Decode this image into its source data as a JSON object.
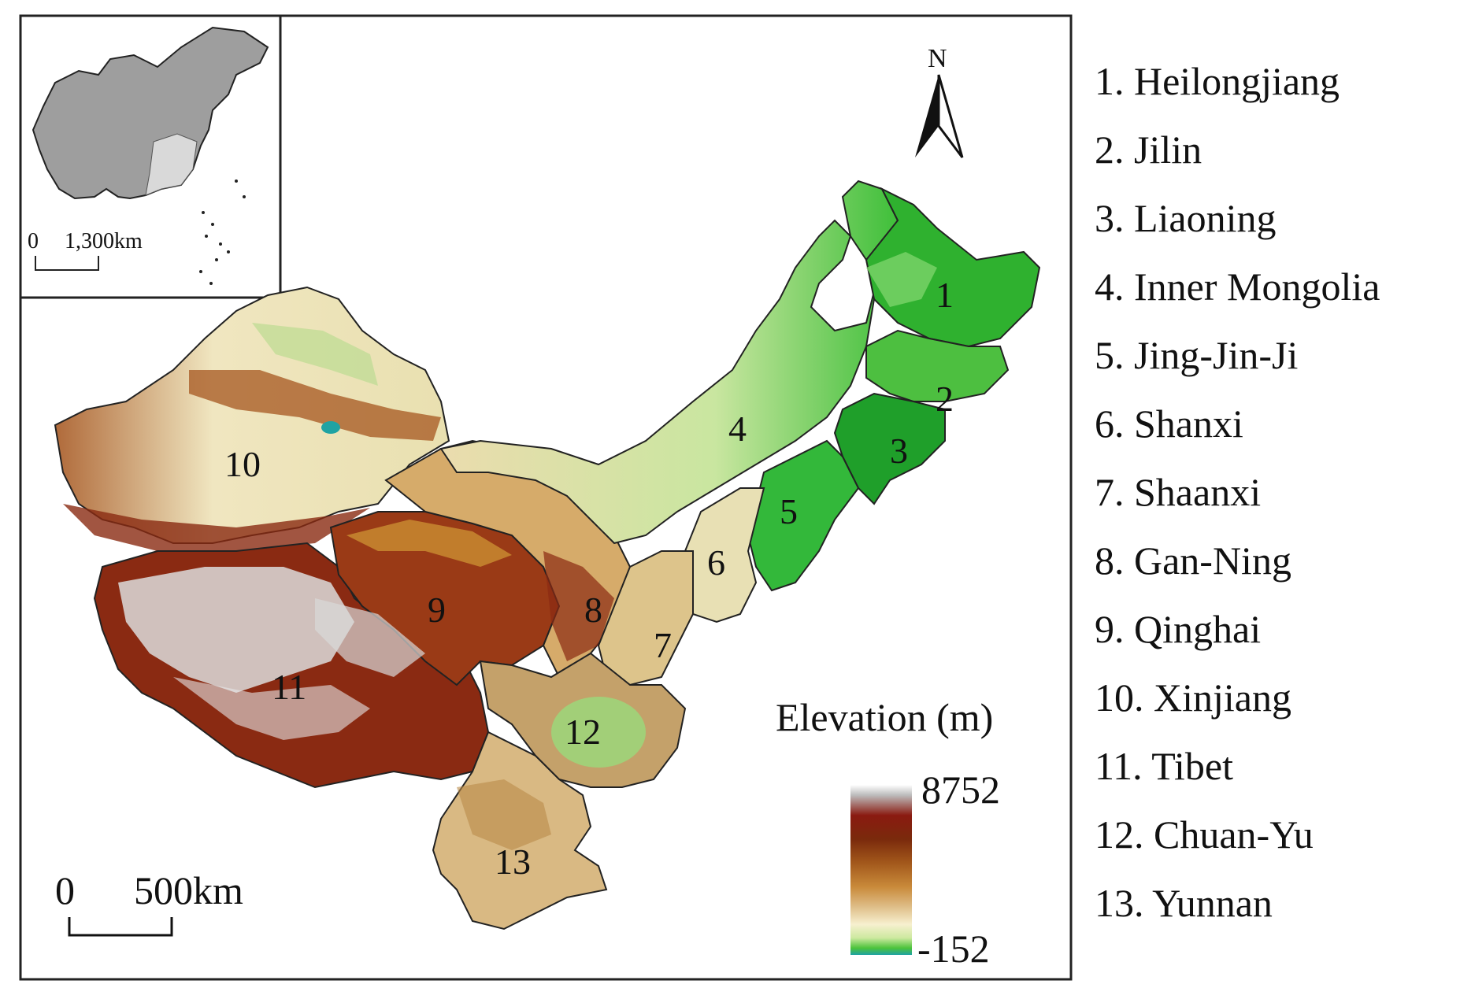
{
  "north_label": "N",
  "inset": {
    "scale_label_left": "0",
    "scale_label_right": "1,300km"
  },
  "main_scale": {
    "label_left": "0",
    "label_right": "500km"
  },
  "elevation_legend": {
    "title": "Elevation (m)",
    "max_label": "8752",
    "min_label": "-152",
    "colors": [
      "#ffffff",
      "#bdbdbd",
      "#8a1a10",
      "#7a2a0c",
      "#a0551a",
      "#c98a3a",
      "#dfbf8a",
      "#f7f0cf",
      "#cde9a0",
      "#4cc23a",
      "#1fa3a3"
    ]
  },
  "regions": [
    {
      "id": "1",
      "name": "Heilongjiang"
    },
    {
      "id": "2",
      "name": "Jilin"
    },
    {
      "id": "3",
      "name": "Liaoning"
    },
    {
      "id": "4",
      "name": "Inner Mongolia"
    },
    {
      "id": "5",
      "name": "Jing-Jin-Ji"
    },
    {
      "id": "6",
      "name": "Shanxi"
    },
    {
      "id": "7",
      "name": "Shaanxi"
    },
    {
      "id": "8",
      "name": "Gan-Ning"
    },
    {
      "id": "9",
      "name": "Qinghai"
    },
    {
      "id": "10",
      "name": "Xinjiang"
    },
    {
      "id": "11",
      "name": "Tibet"
    },
    {
      "id": "12",
      "name": "Chuan-Yu"
    },
    {
      "id": "13",
      "name": "Yunnan"
    }
  ],
  "legend_items": [
    "1. Heilongjiang",
    "2. Jilin",
    "3. Liaoning",
    "4. Inner Mongolia",
    "5. Jing-Jin-Ji",
    "6. Shanxi",
    "7. Shaanxi",
    "8. Gan-Ning",
    "9. Qinghai",
    "10. Xinjiang",
    "11. Tibet",
    "12. Chuan-Yu",
    "13. Yunnan"
  ],
  "colors": {
    "lowland_green": "#3fbf3a",
    "plain_light": "#f2eccb",
    "highland_brown": "#8a2a12",
    "peak_white": "#e8e8e8",
    "inset_land": "#9e9e9e",
    "inset_highlight": "#d9d9d9"
  }
}
